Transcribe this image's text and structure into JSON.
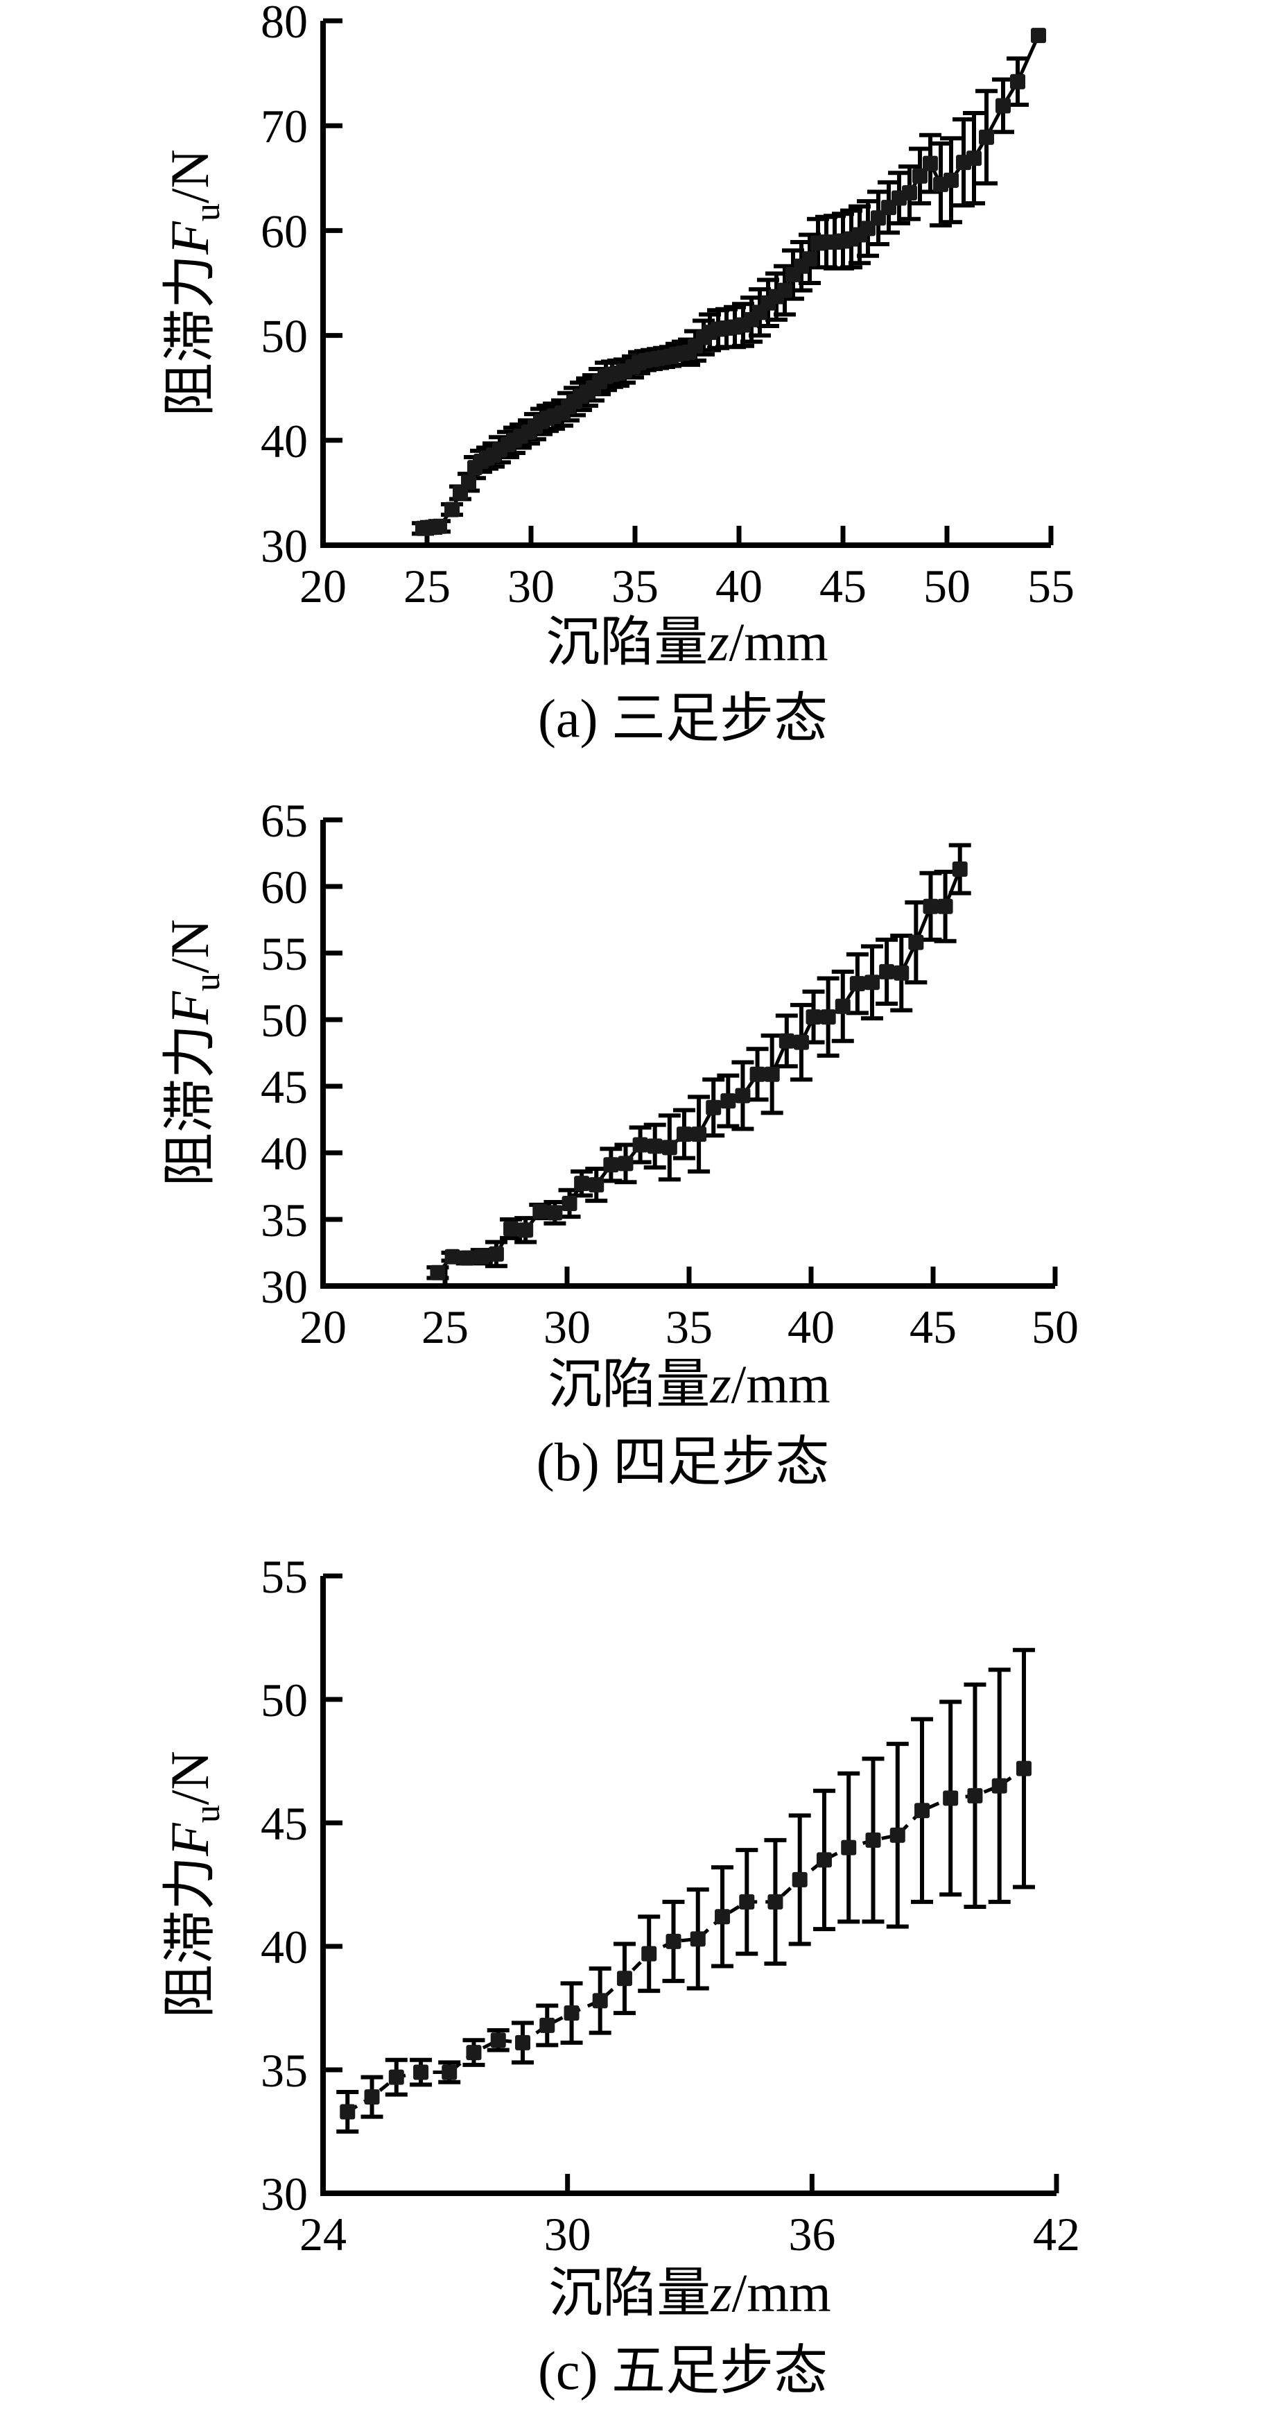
{
  "figure": {
    "background": "#ffffff",
    "ink_color": "#000000",
    "marker_color": "#1a1a1a"
  },
  "chart_data": [
    {
      "id": "a",
      "type": "scatter",
      "caption": "(a) 三足步态",
      "xlabel": "沉陷量z/mm",
      "ylabel": "阻滞力Fu/N",
      "xlabel_parts": {
        "prefix": "沉陷量",
        "italic": "z",
        "unit": "/mm"
      },
      "ylabel_parts": {
        "prefix": "阻滞力",
        "italic": "F",
        "sub": "u",
        "unit": "/N"
      },
      "xlim": [
        20,
        55
      ],
      "ylim": [
        30,
        80
      ],
      "x_ticks": [
        20,
        25,
        30,
        35,
        40,
        45,
        50,
        55
      ],
      "y_ticks": [
        30,
        40,
        50,
        60,
        70,
        80
      ],
      "grid": false,
      "legend": "none",
      "line_style": "solid",
      "marker": "filled-square",
      "x": [
        24.8,
        25.2,
        25.6,
        26.2,
        26.6,
        27.0,
        27.3,
        27.6,
        27.9,
        28.2,
        28.5,
        28.9,
        29.2,
        29.5,
        29.9,
        30.2,
        30.5,
        30.8,
        31.1,
        31.5,
        31.8,
        32.1,
        32.4,
        32.7,
        33.0,
        33.3,
        33.6,
        33.9,
        34.2,
        34.5,
        34.9,
        35.2,
        35.5,
        35.8,
        36.1,
        36.4,
        36.7,
        37.0,
        37.3,
        37.6,
        37.9,
        38.3,
        38.6,
        39.0,
        39.4,
        39.8,
        40.2,
        40.6,
        41.0,
        41.4,
        41.8,
        42.2,
        42.6,
        43.0,
        43.4,
        43.8,
        44.2,
        44.6,
        45.0,
        45.4,
        45.8,
        46.2,
        46.7,
        47.2,
        47.7,
        48.2,
        48.7,
        49.2,
        49.7,
        50.2,
        50.8,
        51.3,
        51.9,
        52.7,
        53.4,
        54.4
      ],
      "y": [
        31.6,
        31.7,
        31.8,
        33.4,
        35.0,
        36.0,
        37.4,
        38.0,
        38.3,
        38.6,
        39.1,
        39.6,
        40.0,
        40.4,
        40.8,
        41.3,
        41.8,
        42.1,
        42.3,
        42.6,
        43.2,
        43.7,
        44.2,
        44.6,
        45.0,
        45.6,
        46.1,
        46.3,
        46.4,
        46.6,
        47.0,
        47.4,
        47.6,
        47.7,
        47.8,
        47.9,
        48.0,
        48.2,
        48.3,
        48.4,
        49.0,
        49.8,
        50.3,
        50.6,
        50.7,
        50.8,
        51.0,
        51.5,
        52.2,
        53.1,
        53.7,
        54.3,
        55.8,
        56.6,
        57.3,
        58.8,
        58.9,
        58.9,
        59.0,
        59.2,
        59.6,
        60.2,
        61.2,
        62.2,
        63.1,
        63.6,
        65.2,
        66.4,
        64.4,
        64.8,
        66.5,
        66.9,
        68.9,
        71.9,
        74.2,
        78.6
      ],
      "yerr": [
        0.5,
        0.5,
        0.5,
        0.5,
        0.6,
        0.8,
        1.0,
        1.0,
        1.0,
        1.1,
        1.2,
        1.2,
        1.2,
        1.1,
        1.1,
        1.2,
        1.2,
        1.2,
        1.2,
        1.2,
        1.3,
        1.3,
        1.3,
        1.3,
        1.2,
        1.2,
        1.3,
        1.2,
        1.2,
        1.1,
        1.0,
        1.0,
        0.9,
        0.9,
        0.9,
        0.9,
        0.9,
        1.0,
        1.1,
        1.2,
        1.4,
        1.6,
        1.7,
        1.8,
        1.8,
        1.9,
        2.0,
        2.1,
        2.2,
        2.2,
        2.2,
        2.3,
        2.3,
        2.3,
        2.3,
        2.3,
        2.4,
        2.5,
        2.6,
        2.7,
        2.7,
        2.6,
        2.5,
        2.4,
        2.4,
        2.5,
        2.6,
        2.7,
        3.9,
        4.0,
        4.1,
        4.3,
        4.4,
        2.5,
        2.2,
        0
      ]
    },
    {
      "id": "b",
      "type": "scatter",
      "caption": "(b) 四足步态",
      "xlabel": "沉陷量z/mm",
      "ylabel": "阻滞力Fu/N",
      "xlabel_parts": {
        "prefix": "沉陷量",
        "italic": "z",
        "unit": "/mm"
      },
      "ylabel_parts": {
        "prefix": "阻滞力",
        "italic": "F",
        "sub": "u",
        "unit": "/N"
      },
      "xlim": [
        20,
        50
      ],
      "ylim": [
        30,
        65
      ],
      "x_ticks": [
        20,
        25,
        30,
        35,
        40,
        45,
        50
      ],
      "y_ticks": [
        30,
        35,
        40,
        45,
        50,
        55,
        60,
        65
      ],
      "grid": false,
      "legend": "none",
      "line_style": "solid",
      "marker": "filled-square",
      "x": [
        24.7,
        25.3,
        25.9,
        26.5,
        27.1,
        27.7,
        28.3,
        28.9,
        29.5,
        30.1,
        30.6,
        31.2,
        31.8,
        32.4,
        33.0,
        33.6,
        34.2,
        34.8,
        35.4,
        36.0,
        36.6,
        37.2,
        37.8,
        38.4,
        39.0,
        39.6,
        40.1,
        40.7,
        41.3,
        41.9,
        42.5,
        43.1,
        43.7,
        44.3,
        44.9,
        45.5,
        46.1
      ],
      "y": [
        31.0,
        32.2,
        32.1,
        32.2,
        32.4,
        34.3,
        34.2,
        35.6,
        35.5,
        36.2,
        37.7,
        37.6,
        39.1,
        39.2,
        40.6,
        40.5,
        40.4,
        41.4,
        41.4,
        43.4,
        43.9,
        44.3,
        45.9,
        45.9,
        48.4,
        48.3,
        50.2,
        50.2,
        51.0,
        52.7,
        52.8,
        53.6,
        53.5,
        55.8,
        58.5,
        58.5,
        61.3
      ],
      "yerr": [
        0.4,
        0.3,
        0.4,
        0.5,
        0.9,
        0.7,
        0.9,
        0.5,
        0.8,
        1.0,
        0.9,
        1.2,
        1.2,
        1.4,
        1.3,
        1.6,
        2.4,
        1.8,
        2.8,
        2.1,
        1.9,
        2.5,
        1.9,
        2.9,
        1.9,
        2.8,
        1.9,
        2.9,
        2.6,
        2.2,
        2.7,
        2.4,
        2.8,
        3.0,
        2.5,
        2.6,
        1.8
      ]
    },
    {
      "id": "c",
      "type": "scatter",
      "caption": "(c) 五足步态",
      "xlabel": "沉陷量z/mm",
      "ylabel": "阻滞力Fu/N",
      "xlabel_parts": {
        "prefix": "沉陷量",
        "italic": "z",
        "unit": "/mm"
      },
      "ylabel_parts": {
        "prefix": "阻滞力",
        "italic": "F",
        "sub": "u",
        "unit": "/N"
      },
      "xlim": [
        24,
        42
      ],
      "ylim": [
        30,
        55
      ],
      "x_ticks": [
        24,
        30,
        36,
        42
      ],
      "y_ticks": [
        30,
        35,
        40,
        45,
        50,
        55
      ],
      "grid": false,
      "legend": "none",
      "line_style": "dashed",
      "marker": "filled-square",
      "x": [
        24.6,
        25.2,
        25.8,
        26.4,
        27.1,
        27.7,
        28.3,
        28.9,
        29.5,
        30.1,
        30.8,
        31.4,
        32.0,
        32.6,
        33.2,
        33.8,
        34.4,
        35.1,
        35.7,
        36.3,
        36.9,
        37.5,
        38.1,
        38.7,
        39.4,
        40.0,
        40.6,
        41.2
      ],
      "y": [
        33.3,
        33.9,
        34.7,
        34.9,
        34.9,
        35.7,
        36.2,
        36.1,
        36.8,
        37.3,
        37.8,
        38.7,
        39.7,
        40.2,
        40.3,
        41.2,
        41.8,
        41.8,
        42.7,
        43.5,
        44.0,
        44.3,
        44.5,
        45.5,
        46.0,
        46.1,
        46.5,
        47.2
      ],
      "yerr": [
        0.8,
        0.8,
        0.7,
        0.5,
        0.4,
        0.5,
        0.4,
        0.8,
        0.8,
        1.2,
        1.3,
        1.4,
        1.5,
        1.6,
        2.0,
        2.0,
        2.1,
        2.5,
        2.6,
        2.8,
        3.0,
        3.3,
        3.7,
        3.7,
        3.9,
        4.5,
        4.7,
        4.8
      ]
    }
  ]
}
